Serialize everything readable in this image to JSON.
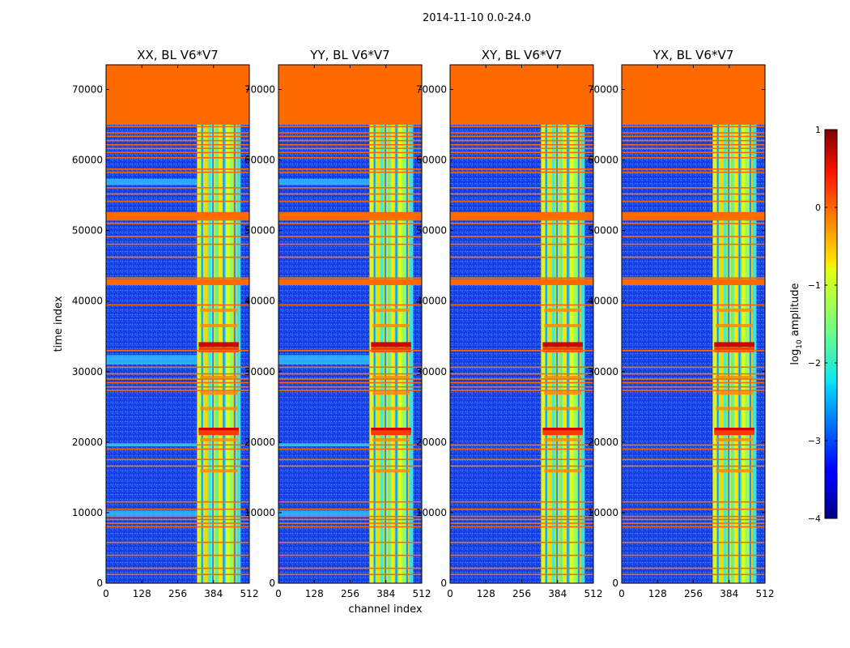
{
  "figure_title": "2014-11-10 0.0-24.0",
  "chart_data": [
    {
      "type": "heatmap",
      "title": "XX, BL V6*V7",
      "xlabel": "channel index",
      "ylabel": "time index",
      "x_ticks": [
        0,
        128,
        256,
        384,
        512
      ],
      "y_ticks": [
        0,
        10000,
        20000,
        30000,
        40000,
        50000,
        60000,
        70000
      ],
      "xlim": [
        0,
        512
      ],
      "ylim": [
        0,
        73500
      ],
      "flagged_time_range": [
        65000,
        73500
      ],
      "strong_channel_range": [
        325,
        480
      ]
    },
    {
      "type": "heatmap",
      "title": "YY, BL V6*V7",
      "xlabel": "channel index",
      "ylabel": "time index",
      "x_ticks": [
        0,
        128,
        256,
        384,
        512
      ],
      "y_ticks": [
        0,
        10000,
        20000,
        30000,
        40000,
        50000,
        60000,
        70000
      ],
      "xlim": [
        0,
        512
      ],
      "ylim": [
        0,
        73500
      ],
      "flagged_time_range": [
        65000,
        73500
      ],
      "strong_channel_range": [
        325,
        480
      ]
    },
    {
      "type": "heatmap",
      "title": "XY, BL V6*V7",
      "xlabel": "channel index",
      "ylabel": "time index",
      "x_ticks": [
        0,
        128,
        256,
        384,
        512
      ],
      "y_ticks": [
        0,
        10000,
        20000,
        30000,
        40000,
        50000,
        60000,
        70000
      ],
      "xlim": [
        0,
        512
      ],
      "ylim": [
        0,
        73500
      ],
      "flagged_time_range": [
        65000,
        73500
      ],
      "strong_channel_range": [
        325,
        480
      ]
    },
    {
      "type": "heatmap",
      "title": "YX, BL V6*V7",
      "xlabel": "channel index",
      "ylabel": "time index",
      "x_ticks": [
        0,
        128,
        256,
        384,
        512
      ],
      "y_ticks": [
        0,
        10000,
        20000,
        30000,
        40000,
        50000,
        60000,
        70000
      ],
      "xlim": [
        0,
        512
      ],
      "ylim": [
        0,
        73500
      ],
      "flagged_time_range": [
        65000,
        73500
      ],
      "strong_channel_range": [
        325,
        480
      ]
    }
  ],
  "colorbar": {
    "label": "log10 amplitude",
    "label_prefix": "log",
    "label_sub": "10",
    "label_suffix": " amplitude",
    "ticks": [
      "1",
      "0",
      "−1",
      "−2",
      "−3",
      "−4"
    ],
    "range": [
      -4,
      1
    ]
  },
  "colors": {
    "flag": "#ff6a00",
    "background": "#ffffff",
    "axis": "#000000"
  }
}
